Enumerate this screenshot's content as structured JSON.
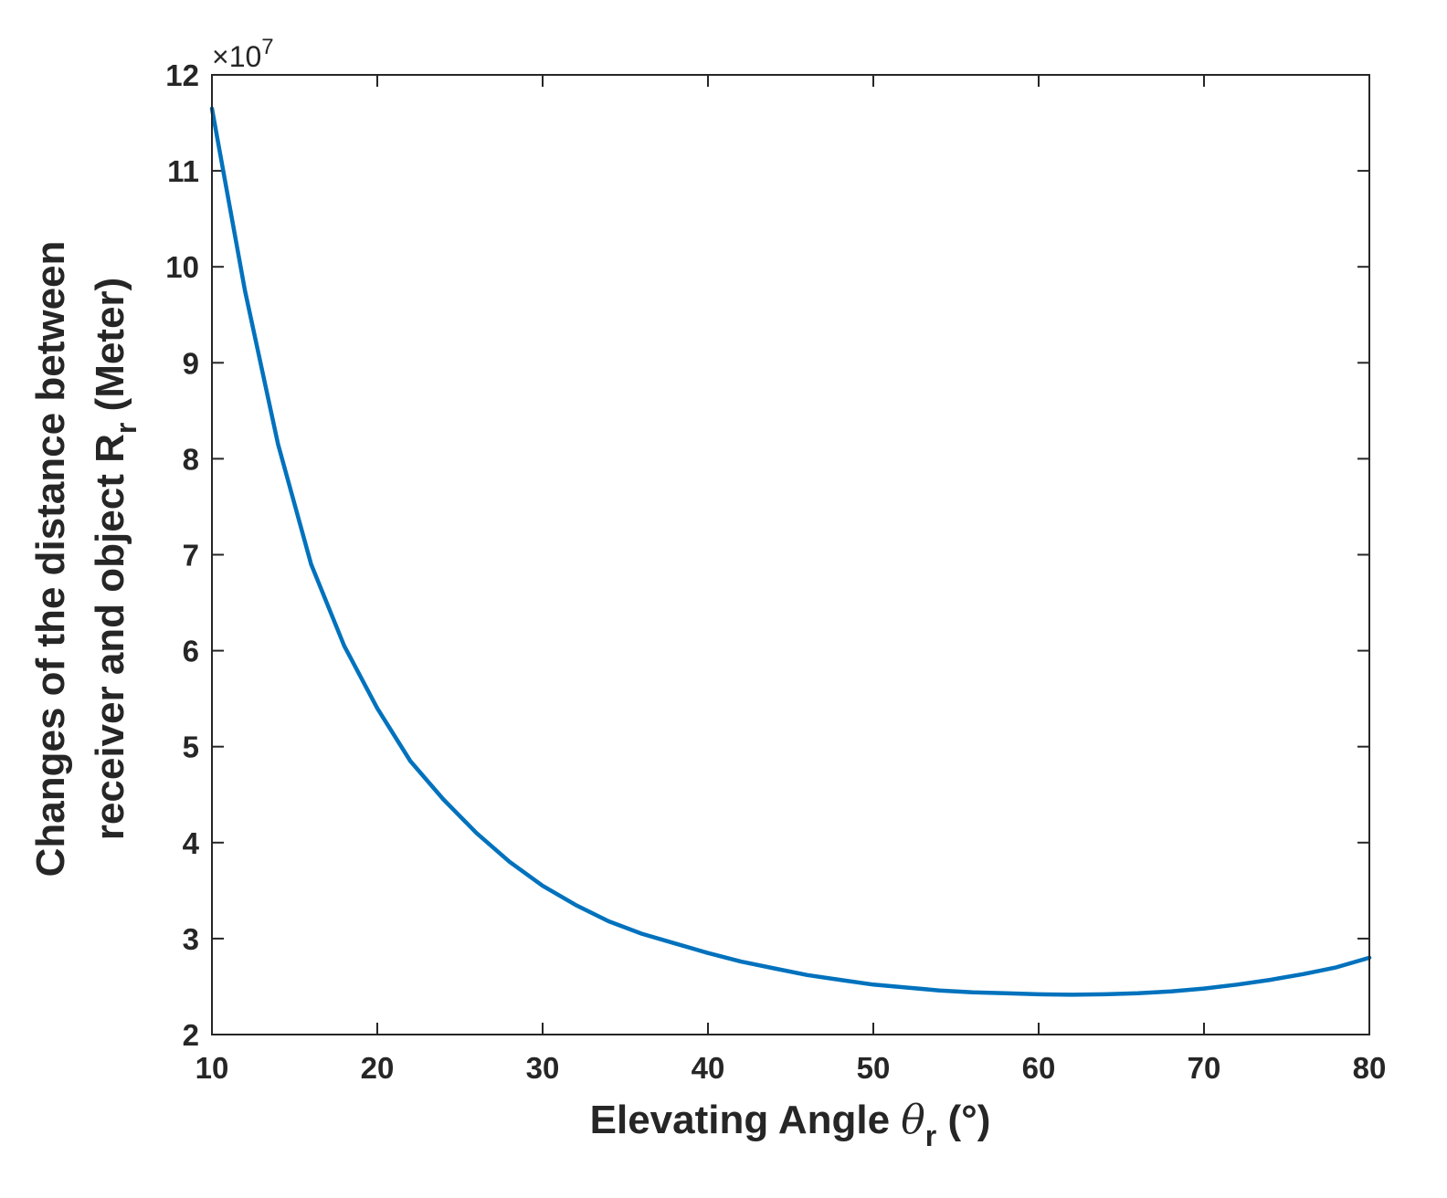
{
  "chart_data": {
    "type": "line",
    "title": "",
    "xlabel": {
      "main": "Elevating Angle ",
      "symbol": "θ",
      "sub": "r",
      "unit": " (°)"
    },
    "ylabel": {
      "line1": "Changes of the distance between",
      "line2_main": "receiver and object R",
      "line2_sub": "r",
      "line2_unit": " (Meter)"
    },
    "y_exponent": {
      "times": "×10",
      "power": "7"
    },
    "xlim": [
      10,
      80
    ],
    "ylim": [
      2,
      12
    ],
    "x_ticks": [
      "10",
      "20",
      "30",
      "40",
      "50",
      "60",
      "70",
      "80"
    ],
    "y_ticks": [
      "2",
      "3",
      "4",
      "5",
      "6",
      "7",
      "8",
      "9",
      "10",
      "11",
      "12"
    ],
    "grid": false,
    "series": [
      {
        "color": "#0072BD",
        "x": [
          10,
          12,
          14,
          16,
          18,
          20,
          22,
          24,
          26,
          28,
          30,
          32,
          34,
          36,
          38,
          40,
          42,
          44,
          46,
          48,
          50,
          52,
          54,
          56,
          58,
          60,
          62,
          64,
          66,
          68,
          70,
          72,
          74,
          76,
          78,
          80
        ],
        "y": [
          11.65,
          9.75,
          8.15,
          6.9,
          6.05,
          5.4,
          4.85,
          4.45,
          4.1,
          3.8,
          3.55,
          3.35,
          3.18,
          3.05,
          2.95,
          2.85,
          2.76,
          2.69,
          2.62,
          2.57,
          2.52,
          2.49,
          2.46,
          2.44,
          2.43,
          2.42,
          2.415,
          2.42,
          2.43,
          2.45,
          2.48,
          2.52,
          2.57,
          2.63,
          2.7,
          2.8
        ]
      }
    ]
  }
}
